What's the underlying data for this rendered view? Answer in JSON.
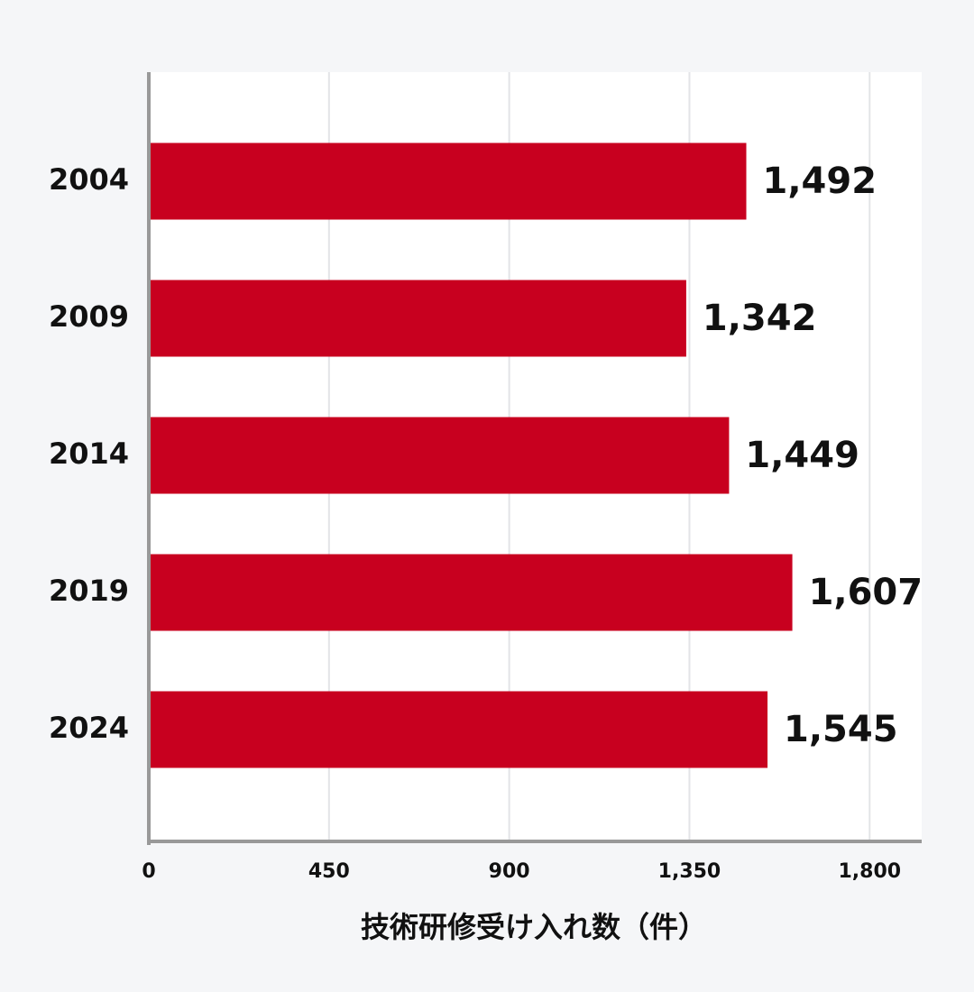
{
  "chart_data": {
    "type": "bar",
    "orientation": "horizontal",
    "categories": [
      "2004",
      "2009",
      "2014",
      "2019",
      "2024"
    ],
    "values": [
      1492,
      1342,
      1449,
      1607,
      1545
    ],
    "value_labels": [
      "1,492",
      "1,342",
      "1,449",
      "1,607",
      "1,545"
    ],
    "color": "#c8001f",
    "xlim": [
      0,
      1930
    ],
    "xticks": [
      0,
      450,
      900,
      {
        "value": 1350,
        "label": "1,350"
      },
      {
        "value": 1800,
        "label": "1,800"
      }
    ],
    "x_label": "技術研修受け入れ数（件）",
    "grid": true
  }
}
